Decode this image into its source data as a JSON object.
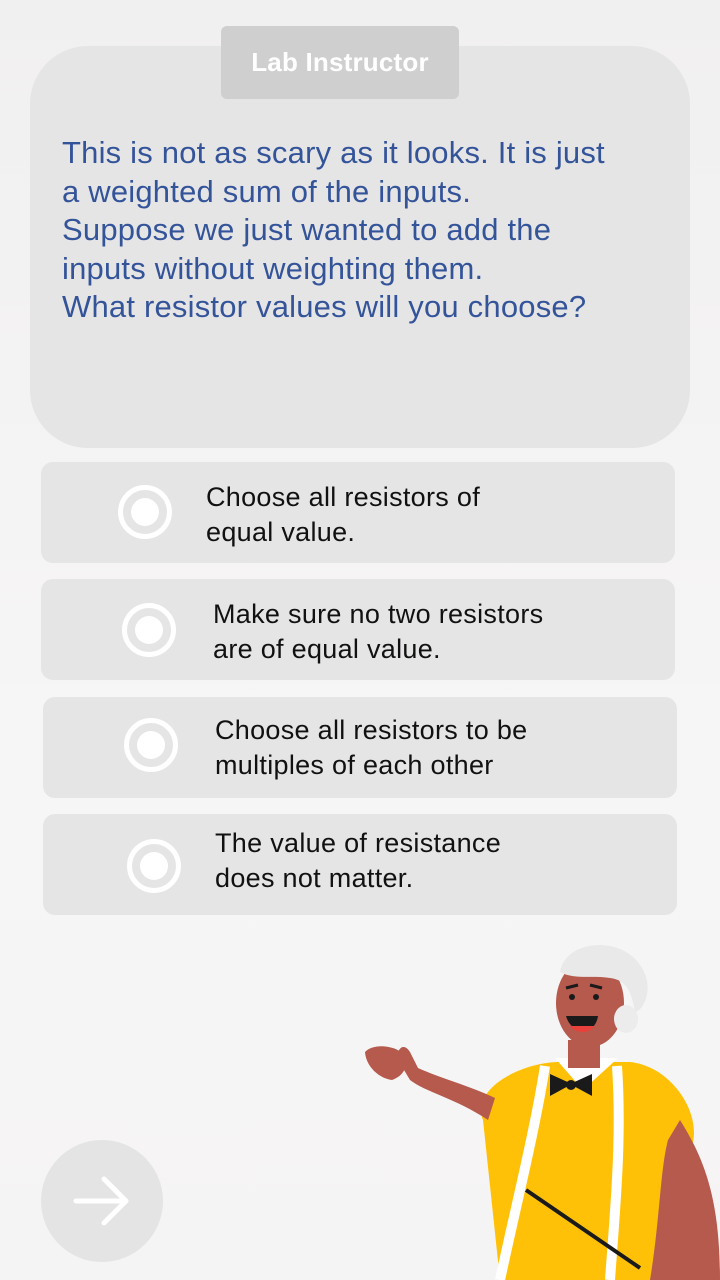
{
  "speaker": {
    "name": "Lab Instructor",
    "message_lines": [
      "This is not as scary as it looks. It is just",
      "a weighted sum of the inputs.",
      "Suppose we just wanted to add the",
      "inputs without weighting them.",
      "What resistor values will you choose?"
    ]
  },
  "options": [
    {
      "line1": "Choose all resistors of",
      "line2": "equal value."
    },
    {
      "line1": "Make sure no two resistors",
      "line2": "are of equal value."
    },
    {
      "line1": "Choose all resistors to be",
      "line2": "multiples of each other"
    },
    {
      "line1": "The value of resistance",
      "line2": "does not matter."
    }
  ],
  "navigation": {
    "next_icon": "arrow-right-icon"
  },
  "illustration": {
    "character": "instructor-with-pointer"
  },
  "colors": {
    "speech_text": "#34549a",
    "card_bg": "#e6e5e6",
    "tag_bg": "#cfcfcf",
    "shirt": "#ffc107",
    "skin": "#b55a4d"
  }
}
